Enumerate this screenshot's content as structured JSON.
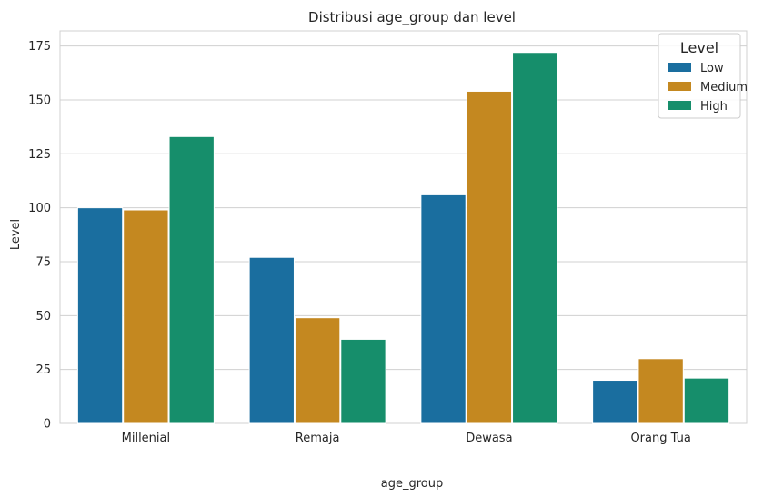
{
  "chart_data": {
    "type": "bar",
    "title": "Distribusi age_group dan level",
    "xlabel": "age_group",
    "ylabel": "Level",
    "categories": [
      "Millenial",
      "Remaja",
      "Dewasa",
      "Orang Tua"
    ],
    "series": [
      {
        "name": "Low",
        "color": "#1a6e9f",
        "values": [
          100,
          77,
          106,
          20
        ]
      },
      {
        "name": "Medium",
        "color": "#c48820",
        "values": [
          99,
          49,
          154,
          30
        ]
      },
      {
        "name": "High",
        "color": "#168e6b",
        "values": [
          133,
          39,
          172,
          21
        ]
      }
    ],
    "ylim": [
      0,
      182
    ],
    "yticks": [
      0,
      25,
      50,
      75,
      100,
      125,
      150,
      175
    ],
    "grid": "horizontal",
    "legend": {
      "title": "Level",
      "position": "top-right"
    }
  }
}
